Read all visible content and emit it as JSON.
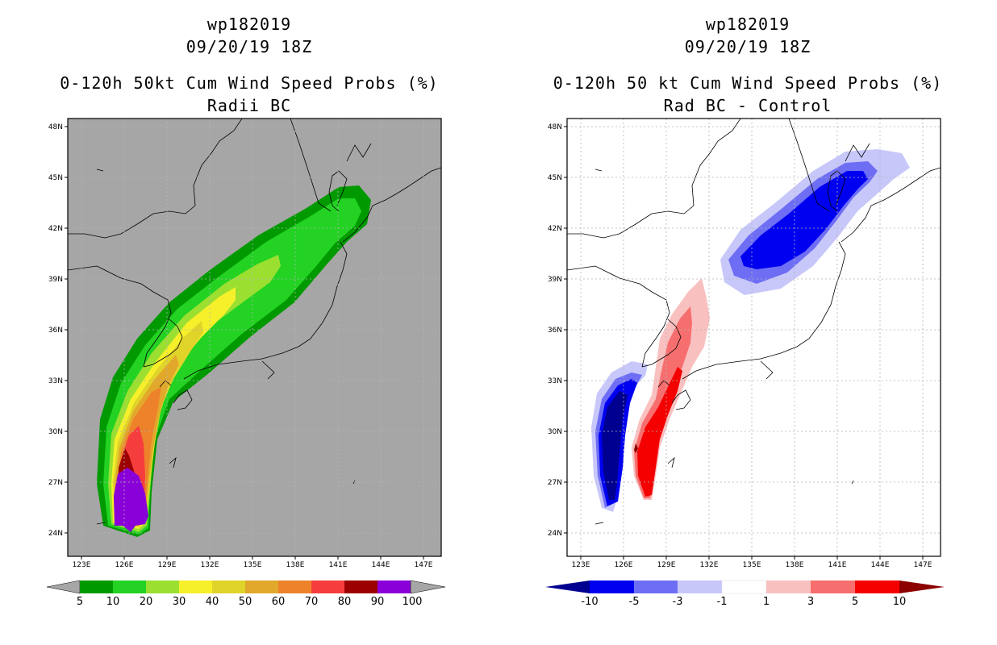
{
  "colors": {
    "land_bg_left": "#a6a6a6",
    "coast": "#000000",
    "grid": "#b4b4b4",
    "prob_colors": [
      "#009a00",
      "#23d223",
      "#9bdf31",
      "#f6f02a",
      "#e0d32a",
      "#e2a82b",
      "#ed822b",
      "#f63d3d",
      "#9c0000",
      "#8a00d8"
    ],
    "diff_colors": [
      "#000090",
      "#0000f0",
      "#6e6ef5",
      "#c7c7fa",
      "#ffffff",
      "#f9c0c0",
      "#f76e6e",
      "#f50000",
      "#8c0000"
    ]
  },
  "left": {
    "title_line1": "wp182019",
    "title_line2": "09/20/19 18Z",
    "title_line3": "0-120h 50kt Cum Wind Speed Probs (%)",
    "title_line4": "Radii BC",
    "lon_labels": [
      "123E",
      "126E",
      "129E",
      "132E",
      "135E",
      "138E",
      "141E",
      "144E",
      "147E"
    ],
    "lat_labels": [
      "48N",
      "45N",
      "42N",
      "39N",
      "36N",
      "33N",
      "30N",
      "27N",
      "24N"
    ],
    "colorbar_labels": [
      "5",
      "10",
      "20",
      "30",
      "40",
      "50",
      "60",
      "70",
      "80",
      "90",
      "100"
    ]
  },
  "right": {
    "title_line1": "wp182019",
    "title_line2": "09/20/19 18Z",
    "title_line3": "0-120h 50 kt Cum Wind Speed Probs (%)",
    "title_line4": "Rad BC - Control",
    "lon_labels": [
      "123E",
      "126E",
      "129E",
      "132E",
      "135E",
      "138E",
      "141E",
      "144E",
      "147E"
    ],
    "lat_labels": [
      "48N",
      "45N",
      "42N",
      "39N",
      "36N",
      "33N",
      "30N",
      "27N",
      "24N"
    ],
    "colorbar_labels": [
      "-10",
      "-5",
      "-3",
      "-1",
      "1",
      "3",
      "5",
      "10"
    ]
  }
}
